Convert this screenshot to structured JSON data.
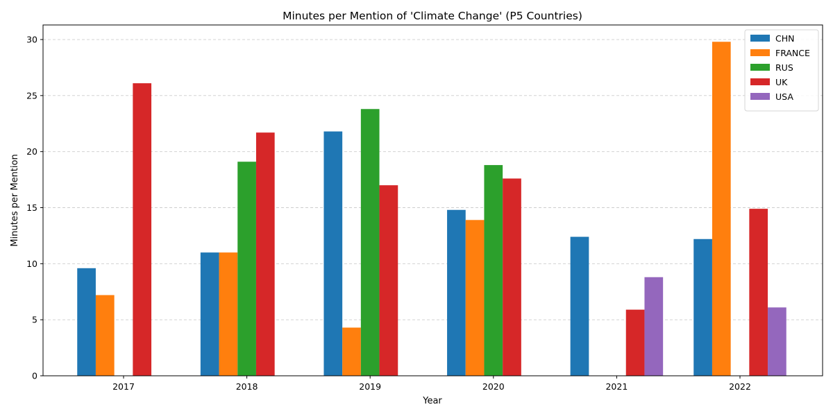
{
  "chart_data": {
    "type": "bar",
    "title": "Minutes per Mention of 'Climate Change' (P5 Countries)",
    "xlabel": "Year",
    "ylabel": "Minutes per Mention",
    "categories": [
      "2017",
      "2018",
      "2019",
      "2020",
      "2021",
      "2022"
    ],
    "ylim": [
      0,
      31.3
    ],
    "yticks": [
      0,
      5,
      10,
      15,
      20,
      25,
      30
    ],
    "grid": "y-dashed",
    "legend_position": "top-right",
    "series": [
      {
        "name": "CHN",
        "color": "#1f77b4",
        "values": [
          9.6,
          11.0,
          21.8,
          14.8,
          12.4,
          12.2
        ]
      },
      {
        "name": "FRANCE",
        "color": "#ff7f0e",
        "values": [
          7.2,
          11.0,
          4.3,
          13.9,
          null,
          29.8
        ]
      },
      {
        "name": "RUS",
        "color": "#2ca02c",
        "values": [
          null,
          19.1,
          23.8,
          18.8,
          null,
          null
        ]
      },
      {
        "name": "UK",
        "color": "#d62728",
        "values": [
          26.1,
          21.7,
          17.0,
          17.6,
          5.9,
          14.9
        ]
      },
      {
        "name": "USA",
        "color": "#9467bd",
        "values": [
          null,
          null,
          null,
          null,
          8.8,
          6.1
        ]
      }
    ]
  }
}
